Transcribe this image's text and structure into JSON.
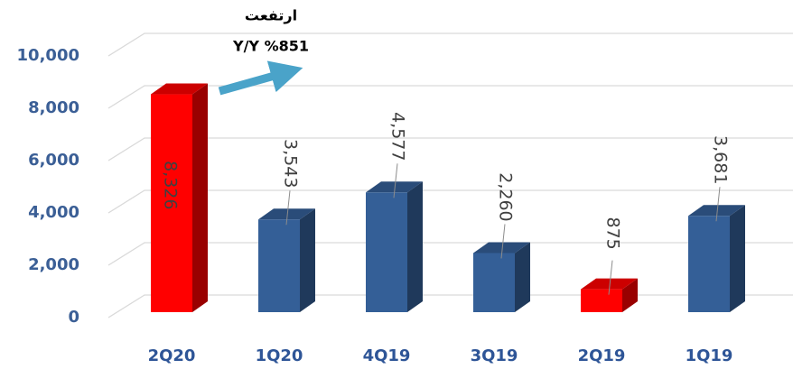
{
  "chart_data": {
    "type": "bar3d",
    "annotation": [
      "ارتفعت",
      "Y/Y %851"
    ],
    "categories": [
      "2Q20",
      "1Q20",
      "4Q19",
      "3Q19",
      "2Q19",
      "1Q19"
    ],
    "values": [
      8326,
      3543,
      4577,
      2260,
      875,
      3681
    ],
    "value_labels": [
      "8,326",
      "3,543",
      "4,577",
      "2,260",
      "875",
      "3,681"
    ],
    "colors": [
      "#ff0000",
      "#345f97",
      "#345f97",
      "#345f97",
      "#ff0000",
      "#345f97"
    ],
    "ylim": [
      0,
      10000
    ],
    "yticks": [
      0,
      {
        "value": 2000,
        "label": "2,000"
      },
      {
        "value": 4000,
        "label": "4,000"
      },
      {
        "value": 6000,
        "label": "6,000"
      },
      {
        "value": 8000,
        "label": "8,000"
      },
      {
        "value": 10000,
        "label": "10,000"
      }
    ],
    "grid": true
  }
}
